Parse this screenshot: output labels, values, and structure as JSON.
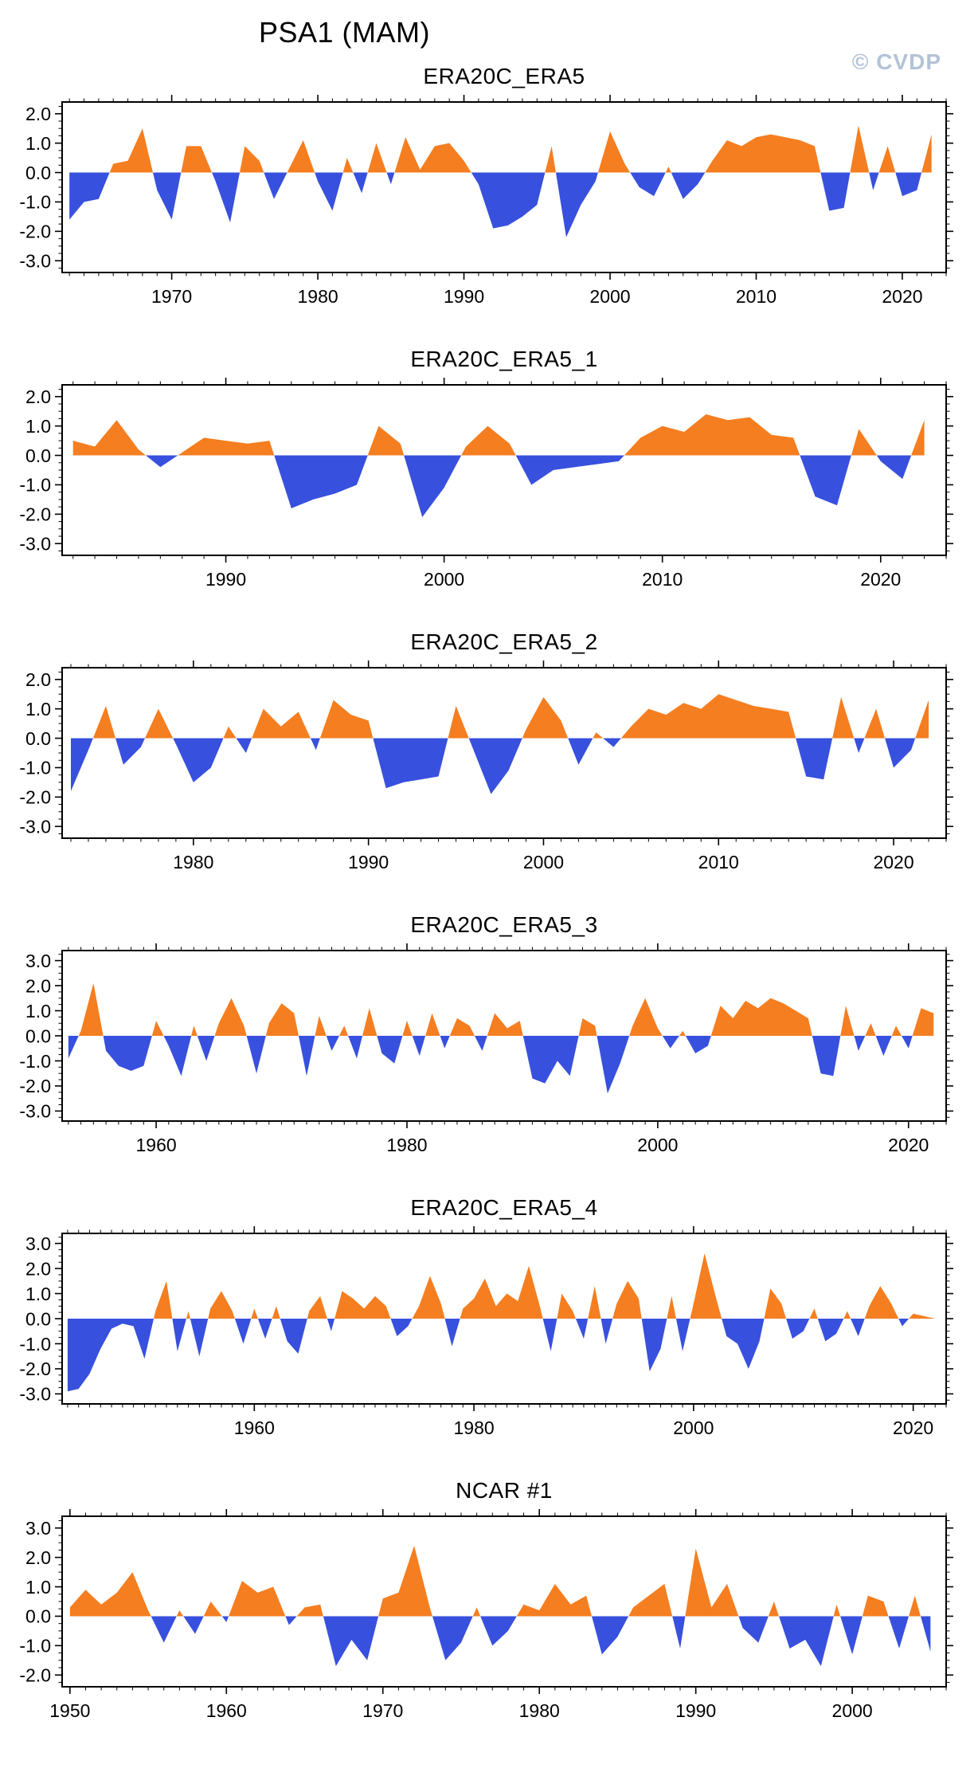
{
  "page": {
    "main_title": "PSA1 (MAM)",
    "watermark": "© CVDP"
  },
  "style": {
    "positive_color": "#F57E20",
    "negative_color": "#3850DE",
    "frame_color": "#000000",
    "watermark_color": "#b3c2d6"
  },
  "chart_data": [
    {
      "type": "area",
      "title": "ERA20C_ERA5",
      "xlabel": "",
      "ylabel": "",
      "grid": false,
      "start_year": 1963,
      "xlim": [
        1962.5,
        2023
      ],
      "xticks": [
        1970,
        1980,
        1990,
        2000,
        2010,
        2020
      ],
      "ylim": [
        -3.4,
        2.4
      ],
      "yticks": [
        2.0,
        1.0,
        0.0,
        -1.0,
        -2.0,
        -3.0
      ],
      "values": [
        -1.6,
        -1.0,
        -0.9,
        0.3,
        0.4,
        1.5,
        -0.6,
        -1.6,
        0.9,
        0.9,
        -0.3,
        -1.7,
        0.9,
        0.4,
        -0.9,
        0.1,
        1.1,
        -0.3,
        -1.3,
        0.5,
        -0.7,
        1.0,
        -0.4,
        1.2,
        0.1,
        0.9,
        1.0,
        0.4,
        -0.4,
        -1.9,
        -1.8,
        -1.5,
        -1.1,
        0.9,
        -2.2,
        -1.1,
        -0.3,
        1.4,
        0.3,
        -0.5,
        -0.8,
        0.2,
        -0.9,
        -0.4,
        0.4,
        1.1,
        0.9,
        1.2,
        1.3,
        1.2,
        1.1,
        0.9,
        -1.3,
        -1.2,
        1.6,
        -0.6,
        0.9,
        -0.8,
        -0.6,
        1.3
      ]
    },
    {
      "type": "area",
      "title": "ERA20C_ERA5_1",
      "xlabel": "",
      "ylabel": "",
      "grid": false,
      "start_year": 1983,
      "xlim": [
        1982.5,
        2023
      ],
      "xticks": [
        1990,
        2000,
        2010,
        2020
      ],
      "ylim": [
        -3.4,
        2.4
      ],
      "yticks": [
        2.0,
        1.0,
        0.0,
        -1.0,
        -2.0,
        -3.0
      ],
      "values": [
        0.5,
        0.3,
        1.2,
        0.2,
        -0.4,
        0.1,
        0.6,
        0.5,
        0.4,
        0.5,
        -1.8,
        -1.5,
        -1.3,
        -1.0,
        1.0,
        0.4,
        -2.1,
        -1.1,
        0.3,
        1.0,
        0.4,
        -1.0,
        -0.5,
        -0.4,
        -0.3,
        -0.2,
        0.6,
        1.0,
        0.8,
        1.4,
        1.2,
        1.3,
        0.7,
        0.6,
        -1.4,
        -1.7,
        0.9,
        -0.2,
        -0.8,
        1.2
      ]
    },
    {
      "type": "area",
      "title": "ERA20C_ERA5_2",
      "xlabel": "",
      "ylabel": "",
      "grid": false,
      "start_year": 1973,
      "xlim": [
        1972.5,
        2023
      ],
      "xticks": [
        1980,
        1990,
        2000,
        2010,
        2020
      ],
      "ylim": [
        -3.4,
        2.4
      ],
      "yticks": [
        2.0,
        1.0,
        0.0,
        -1.0,
        -2.0,
        -3.0
      ],
      "values": [
        -1.8,
        -0.4,
        1.1,
        -0.9,
        -0.3,
        1.0,
        -0.2,
        -1.5,
        -1.0,
        0.4,
        -0.5,
        1.0,
        0.4,
        0.9,
        -0.4,
        1.3,
        0.8,
        0.6,
        -1.7,
        -1.5,
        -1.4,
        -1.3,
        1.1,
        -0.4,
        -1.9,
        -1.1,
        0.3,
        1.4,
        0.6,
        -0.9,
        0.2,
        -0.3,
        0.4,
        1.0,
        0.8,
        1.2,
        1.0,
        1.5,
        1.3,
        1.1,
        1.0,
        0.9,
        -1.3,
        -1.4,
        1.4,
        -0.5,
        1.0,
        -1.0,
        -0.4,
        1.3
      ]
    },
    {
      "type": "area",
      "title": "ERA20C_ERA5_3",
      "xlabel": "",
      "ylabel": "",
      "grid": false,
      "start_year": 1953,
      "xlim": [
        1952.5,
        2023
      ],
      "xticks": [
        1960,
        1980,
        2000,
        2020
      ],
      "ylim": [
        -3.4,
        3.4
      ],
      "yticks": [
        3.0,
        2.0,
        1.0,
        0.0,
        -1.0,
        -2.0,
        -3.0
      ],
      "values": [
        -0.9,
        0.2,
        2.1,
        -0.6,
        -1.2,
        -1.4,
        -1.2,
        0.6,
        -0.4,
        -1.6,
        0.4,
        -1.0,
        0.5,
        1.5,
        0.4,
        -1.5,
        0.5,
        1.3,
        0.9,
        -1.6,
        0.8,
        -0.6,
        0.4,
        -0.9,
        1.1,
        -0.7,
        -1.1,
        0.6,
        -0.8,
        0.9,
        -0.5,
        0.7,
        0.4,
        -0.6,
        0.9,
        0.3,
        0.6,
        -1.7,
        -1.9,
        -1.0,
        -1.6,
        0.7,
        0.4,
        -2.3,
        -1.1,
        0.4,
        1.5,
        0.3,
        -0.5,
        0.2,
        -0.7,
        -0.4,
        1.2,
        0.7,
        1.4,
        1.1,
        1.5,
        1.3,
        1.0,
        0.7,
        -1.5,
        -1.6,
        1.2,
        -0.6,
        0.5,
        -0.8,
        0.4,
        -0.5,
        1.1,
        0.9
      ]
    },
    {
      "type": "area",
      "title": "ERA20C_ERA5_4",
      "xlabel": "",
      "ylabel": "",
      "grid": false,
      "start_year": 1943,
      "xlim": [
        1942.5,
        2023
      ],
      "xticks": [
        1960,
        1980,
        2000,
        2020
      ],
      "ylim": [
        -3.4,
        3.4
      ],
      "yticks": [
        3.0,
        2.0,
        1.0,
        0.0,
        -1.0,
        -2.0,
        -3.0
      ],
      "values": [
        -2.9,
        -2.8,
        -2.2,
        -1.2,
        -0.4,
        -0.2,
        -0.3,
        -1.6,
        0.3,
        1.5,
        -1.3,
        0.3,
        -1.5,
        0.4,
        1.1,
        0.3,
        -1.0,
        0.4,
        -0.8,
        0.5,
        -0.9,
        -1.4,
        0.3,
        0.9,
        -0.5,
        1.1,
        0.8,
        0.4,
        0.9,
        0.5,
        -0.7,
        -0.3,
        0.5,
        1.7,
        0.6,
        -1.1,
        0.4,
        0.8,
        1.6,
        0.5,
        1.0,
        0.7,
        2.1,
        0.5,
        -1.3,
        1.0,
        0.3,
        -0.8,
        1.3,
        -1.0,
        0.6,
        1.5,
        0.8,
        -2.1,
        -1.2,
        0.9,
        -1.3,
        0.6,
        2.6,
        0.9,
        -0.7,
        -1.0,
        -2.0,
        -0.9,
        1.2,
        0.6,
        -0.8,
        -0.5,
        0.4,
        -0.9,
        -0.6,
        0.3,
        -0.7,
        0.5,
        1.3,
        0.6,
        -0.3,
        0.2,
        0.1,
        0.0
      ]
    },
    {
      "type": "area",
      "title": "NCAR #1",
      "xlabel": "",
      "ylabel": "",
      "grid": false,
      "start_year": 1950,
      "xlim": [
        1949.5,
        2006
      ],
      "xticks": [
        1950,
        1960,
        1970,
        1980,
        1990,
        2000
      ],
      "ylim": [
        -2.4,
        3.4
      ],
      "yticks": [
        3.0,
        2.0,
        1.0,
        0.0,
        -1.0,
        -2.0
      ],
      "values": [
        0.3,
        0.9,
        0.4,
        0.8,
        1.5,
        0.2,
        -0.9,
        0.2,
        -0.6,
        0.5,
        -0.2,
        1.2,
        0.8,
        1.0,
        -0.3,
        0.3,
        0.4,
        -1.7,
        -0.8,
        -1.5,
        0.6,
        0.8,
        2.4,
        0.3,
        -1.5,
        -0.9,
        0.3,
        -1.0,
        -0.5,
        0.4,
        0.2,
        1.1,
        0.4,
        0.7,
        -1.3,
        -0.7,
        0.3,
        0.7,
        1.1,
        -1.1,
        2.3,
        0.3,
        1.1,
        -0.4,
        -0.9,
        0.5,
        -1.1,
        -0.8,
        -1.7,
        0.4,
        -1.3,
        0.7,
        0.5,
        -1.1,
        0.7,
        -1.2
      ]
    }
  ]
}
